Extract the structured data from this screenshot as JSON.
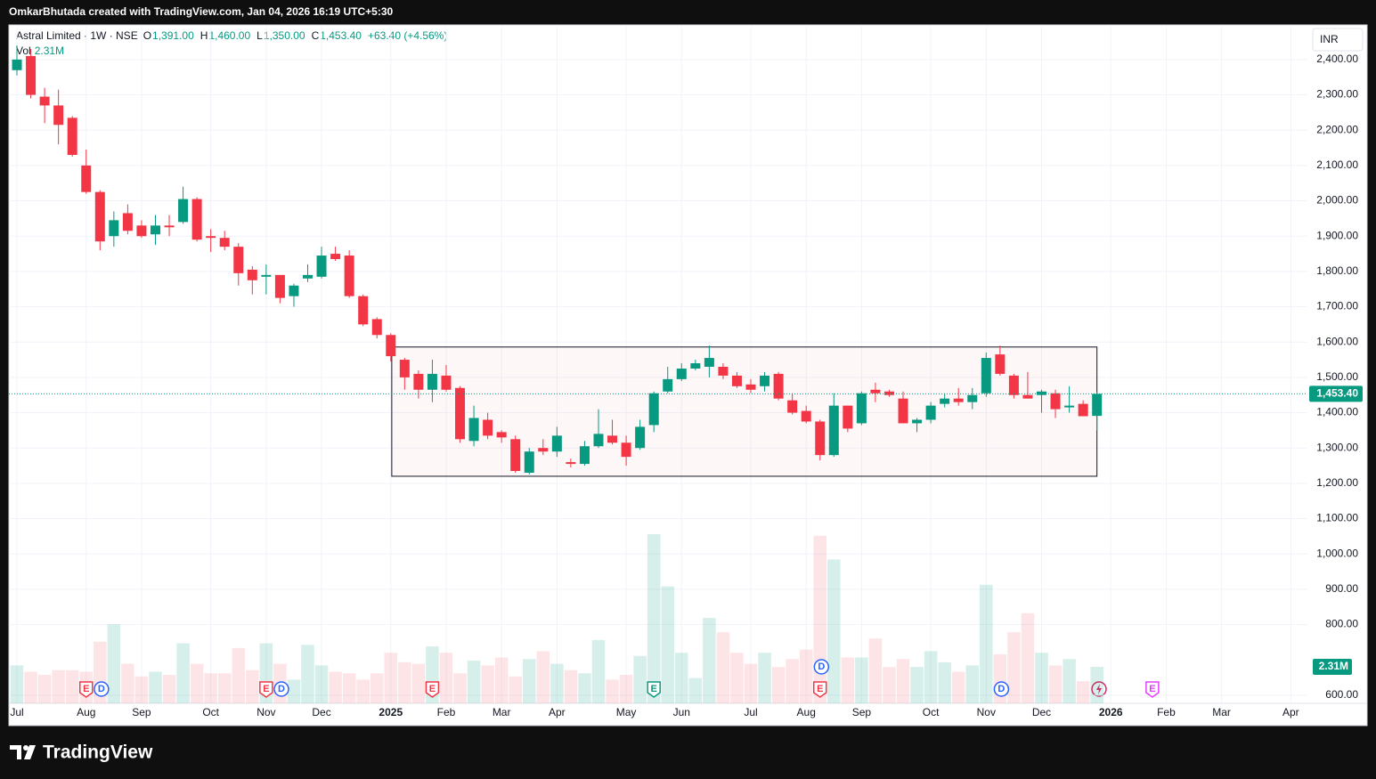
{
  "header": {
    "text": "OmkarBhutada created with TradingView.com, Jan 04, 2026 16:19 UTC+5:30"
  },
  "footer": {
    "logo": "TradingView"
  },
  "chart_data": {
    "type": "candlestick",
    "symbol": "Astral Limited · 1W · NSE",
    "legend": [
      {
        "key": "O",
        "value": "1,391.00"
      },
      {
        "key": "H",
        "value": "1,460.00"
      },
      {
        "key": "L",
        "value": "1,350.00"
      },
      {
        "key": "C",
        "value": "1,453.40"
      }
    ],
    "change": "+63.40 (+4.56%)",
    "volume_key": "Vol",
    "volume_label": "2.31M",
    "last_price_label": "1,453.40",
    "currency": "INR",
    "up_color": "#089981",
    "down_color": "#f23645",
    "x": [
      0,
      1,
      2,
      3,
      4,
      5,
      6,
      7,
      8,
      9,
      10,
      11,
      12,
      13,
      14,
      15,
      16,
      17,
      18,
      19,
      20,
      21,
      22,
      23,
      24,
      25,
      26,
      27,
      28,
      29,
      30,
      31,
      32,
      33,
      34,
      35,
      36,
      37,
      38,
      39,
      40,
      41,
      42,
      43,
      44,
      45,
      46,
      47,
      48,
      49,
      50,
      51,
      52,
      53,
      54,
      55,
      56,
      57,
      58,
      59,
      60,
      61,
      62,
      63,
      64,
      65,
      66,
      67,
      68,
      69,
      70,
      71,
      72,
      73,
      74,
      75,
      76,
      77,
      78
    ],
    "open": [
      2370,
      2410,
      2295,
      2270,
      2235,
      2100,
      2025,
      1900,
      1965,
      1930,
      1905,
      1930,
      1940,
      2005,
      1900,
      1895,
      1870,
      1805,
      1785,
      1790,
      1730,
      1780,
      1785,
      1850,
      1845,
      1730,
      1665,
      1620,
      1550,
      1510,
      1465,
      1505,
      1470,
      1320,
      1380,
      1345,
      1325,
      1230,
      1300,
      1290,
      1260,
      1255,
      1305,
      1335,
      1315,
      1300,
      1365,
      1460,
      1495,
      1525,
      1530,
      1530,
      1505,
      1480,
      1475,
      1510,
      1435,
      1405,
      1375,
      1280,
      1420,
      1370,
      1465,
      1460,
      1440,
      1370,
      1380,
      1425,
      1440,
      1430,
      1455,
      1565,
      1505,
      1450,
      1450,
      1455,
      1415,
      1425,
      1391
    ],
    "high": [
      2440,
      2430,
      2320,
      2315,
      2240,
      2145,
      2030,
      1970,
      1990,
      1945,
      1960,
      1960,
      2040,
      2010,
      1920,
      1915,
      1880,
      1815,
      1820,
      1790,
      1765,
      1820,
      1870,
      1870,
      1860,
      1735,
      1670,
      1625,
      1555,
      1520,
      1550,
      1535,
      1475,
      1420,
      1400,
      1350,
      1335,
      1300,
      1325,
      1360,
      1270,
      1320,
      1410,
      1380,
      1335,
      1380,
      1460,
      1530,
      1540,
      1550,
      1590,
      1540,
      1515,
      1495,
      1515,
      1515,
      1455,
      1420,
      1380,
      1455,
      1420,
      1460,
      1485,
      1465,
      1460,
      1385,
      1430,
      1455,
      1470,
      1470,
      1570,
      1590,
      1510,
      1515,
      1465,
      1465,
      1475,
      1435,
      1460
    ],
    "low": [
      2355,
      2290,
      2220,
      2160,
      2125,
      2020,
      1860,
      1870,
      1905,
      1895,
      1875,
      1900,
      1935,
      1885,
      1855,
      1860,
      1760,
      1735,
      1735,
      1710,
      1700,
      1770,
      1780,
      1830,
      1725,
      1645,
      1610,
      1545,
      1465,
      1440,
      1430,
      1460,
      1315,
      1305,
      1325,
      1315,
      1230,
      1225,
      1280,
      1275,
      1245,
      1250,
      1300,
      1310,
      1250,
      1295,
      1345,
      1455,
      1490,
      1520,
      1500,
      1495,
      1470,
      1455,
      1460,
      1435,
      1395,
      1370,
      1265,
      1275,
      1345,
      1365,
      1430,
      1445,
      1370,
      1345,
      1370,
      1415,
      1420,
      1410,
      1445,
      1505,
      1440,
      1440,
      1400,
      1385,
      1400,
      1390,
      1350
    ],
    "close": [
      2400,
      2300,
      2270,
      2215,
      2130,
      2025,
      1885,
      1945,
      1915,
      1900,
      1930,
      1925,
      2005,
      1890,
      1895,
      1870,
      1795,
      1775,
      1790,
      1725,
      1760,
      1790,
      1845,
      1835,
      1730,
      1650,
      1620,
      1560,
      1500,
      1465,
      1510,
      1465,
      1325,
      1385,
      1335,
      1330,
      1235,
      1290,
      1290,
      1335,
      1255,
      1305,
      1340,
      1315,
      1275,
      1360,
      1455,
      1495,
      1525,
      1540,
      1555,
      1505,
      1475,
      1465,
      1505,
      1440,
      1400,
      1375,
      1280,
      1420,
      1355,
      1455,
      1455,
      1450,
      1370,
      1380,
      1420,
      1440,
      1430,
      1450,
      1555,
      1510,
      1450,
      1440,
      1460,
      1410,
      1420,
      1390,
      1453.4
    ],
    "volume": [
      2.4,
      2.0,
      1.8,
      2.1,
      2.1,
      2.0,
      3.9,
      5.0,
      2.5,
      1.7,
      2.0,
      1.8,
      3.8,
      2.5,
      1.9,
      1.9,
      3.5,
      2.1,
      3.8,
      2.5,
      1.5,
      3.7,
      2.4,
      2.0,
      1.9,
      1.5,
      1.9,
      3.2,
      2.6,
      2.5,
      3.6,
      3.2,
      1.9,
      2.7,
      2.4,
      2.9,
      1.7,
      2.8,
      3.3,
      2.5,
      2.1,
      1.9,
      4.0,
      1.5,
      1.8,
      3.0,
      10.7,
      7.4,
      3.2,
      1.6,
      5.4,
      4.5,
      3.2,
      2.5,
      3.2,
      2.3,
      2.8,
      3.4,
      10.6,
      9.1,
      2.9,
      2.9,
      4.1,
      2.3,
      2.8,
      2.3,
      3.3,
      2.6,
      2.0,
      2.4,
      7.5,
      3.1,
      4.5,
      5.7,
      3.2,
      2.4,
      2.8,
      1.4,
      2.31
    ],
    "volume_ylim": [
      0,
      42.8
    ],
    "xlim": [
      -0.58,
      93.2
    ],
    "xticks": [
      {
        "value": 0,
        "label": "Jul"
      },
      {
        "value": 5,
        "label": "Aug"
      },
      {
        "value": 9,
        "label": "Sep"
      },
      {
        "value": 14,
        "label": "Oct"
      },
      {
        "value": 18,
        "label": "Nov"
      },
      {
        "value": 22,
        "label": "Dec"
      },
      {
        "value": 27,
        "label": "2025"
      },
      {
        "value": 31,
        "label": "Feb"
      },
      {
        "value": 35,
        "label": "Mar"
      },
      {
        "value": 39,
        "label": "Apr"
      },
      {
        "value": 44,
        "label": "May"
      },
      {
        "value": 48,
        "label": "Jun"
      },
      {
        "value": 53,
        "label": "Jul"
      },
      {
        "value": 57,
        "label": "Aug"
      },
      {
        "value": 61,
        "label": "Sep"
      },
      {
        "value": 66,
        "label": "Oct"
      },
      {
        "value": 70,
        "label": "Nov"
      },
      {
        "value": 74,
        "label": "Dec"
      },
      {
        "value": 79,
        "label": "2026"
      },
      {
        "value": 83,
        "label": "Feb"
      },
      {
        "value": 87,
        "label": "Mar"
      },
      {
        "value": 92,
        "label": "Apr"
      }
    ],
    "ylim": [
      577,
      2493
    ],
    "yticks": [
      {
        "value": 600,
        "label": "600.00"
      },
      {
        "value": 800,
        "label": "800.00"
      },
      {
        "value": 900,
        "label": "900.00"
      },
      {
        "value": 1000,
        "label": "1,000.00"
      },
      {
        "value": 1100,
        "label": "1,100.00"
      },
      {
        "value": 1200,
        "label": "1,200.00"
      },
      {
        "value": 1300,
        "label": "1,300.00"
      },
      {
        "value": 1400,
        "label": "1,400.00"
      },
      {
        "value": 1500,
        "label": "1,500.00"
      },
      {
        "value": 1600,
        "label": "1,600.00"
      },
      {
        "value": 1700,
        "label": "1,700.00"
      },
      {
        "value": 1800,
        "label": "1,800.00"
      },
      {
        "value": 1900,
        "label": "1,900.00"
      },
      {
        "value": 2000,
        "label": "2,000.00"
      },
      {
        "value": 2100,
        "label": "2,100.00"
      },
      {
        "value": 2200,
        "label": "2,200.00"
      },
      {
        "value": 2300,
        "label": "2,300.00"
      },
      {
        "value": 2400,
        "label": "2,400.00"
      }
    ],
    "grid": true,
    "range_box": {
      "x": [
        27.07,
        78
      ],
      "y": [
        1220,
        1586
      ]
    },
    "events": [
      {
        "x": 5,
        "label": "E",
        "color": "#f23645"
      },
      {
        "x": 6.1,
        "label": "D",
        "color": "#2962ff"
      },
      {
        "x": 18,
        "label": "E",
        "color": "#f23645"
      },
      {
        "x": 19.1,
        "label": "D",
        "color": "#2962ff"
      },
      {
        "x": 30,
        "label": "E",
        "color": "#f23645"
      },
      {
        "x": 46,
        "label": "E",
        "color": "#089981"
      },
      {
        "x": 58,
        "label": "E",
        "color": "#f23645"
      },
      {
        "x": 58.1,
        "label": "D",
        "color": "#2962ff"
      },
      {
        "x": 71.1,
        "label": "D",
        "color": "#2962ff"
      },
      {
        "x": 82,
        "label": "E",
        "color": "#e040fb"
      }
    ]
  }
}
